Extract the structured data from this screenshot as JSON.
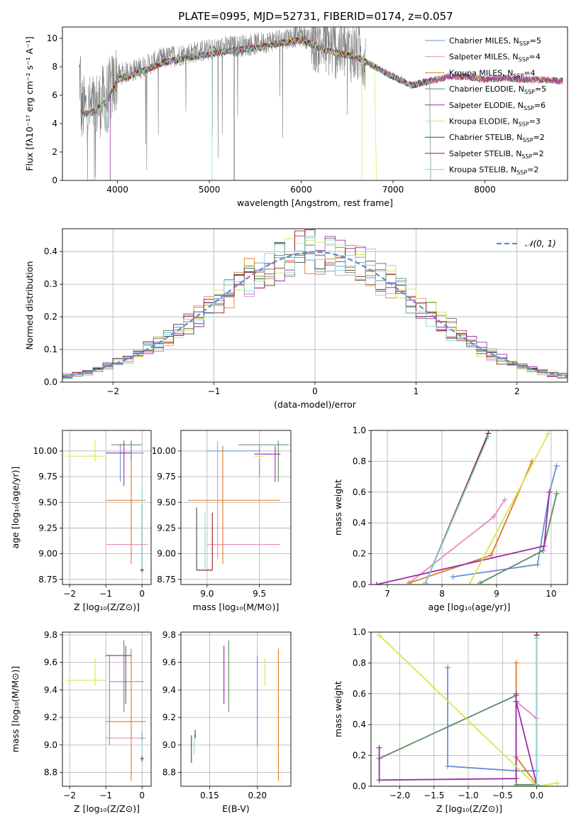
{
  "figure_title": "PLATE=0995, MJD=52731, FIBERID=0174, z=0.057",
  "colors": {
    "Chabrier MILES": "#6b8fd6",
    "Salpeter MILES": "#e58bc0",
    "Kroupa MILES": "#e07b24",
    "Chabrier ELODIE": "#5e8a5e",
    "Salpeter ELODIE": "#9c2fa8",
    "Kroupa ELODIE": "#d6e84a",
    "Chabrier STELIB": "#444444",
    "Salpeter STELIB": "#9e1b1b",
    "Kroupa STELIB": "#86dad9",
    "data": "#808080",
    "gaussian": "#5b8bd8"
  },
  "chart_data": [
    {
      "id": "spectrum",
      "type": "line",
      "title": "",
      "xlabel": "wavelength [Angstrom, rest frame]",
      "ylabel": "Flux [fλ10⁻¹⁷ erg cm⁻² s⁻¹ A⁻¹]",
      "xlim": [
        3400,
        8900
      ],
      "ylim": [
        0,
        10.8
      ],
      "xticks": [
        4000,
        5000,
        6000,
        7000,
        8000
      ],
      "yticks": [
        0,
        2,
        4,
        6,
        8,
        10
      ],
      "grid": false,
      "legend": "top-right",
      "continuum": {
        "x": [
          3600,
          3700,
          3800,
          3900,
          4000,
          4200,
          4500,
          4800,
          5000,
          5200,
          5500,
          5800,
          6000,
          6300,
          6600,
          6800,
          7000,
          7200,
          7400,
          7600,
          7800,
          8000,
          8200,
          8400,
          8600,
          8800
        ],
        "y": [
          5.0,
          5.0,
          5.4,
          6.0,
          7.4,
          7.8,
          8.6,
          9.0,
          9.2,
          9.4,
          9.6,
          10.0,
          10.2,
          9.4,
          9.0,
          8.3,
          7.6,
          7.0,
          7.3,
          7.6,
          7.6,
          7.4,
          7.5,
          7.4,
          7.4,
          7.3
        ]
      },
      "series": [
        {
          "name": "Chabrier MILES",
          "nssp": "5"
        },
        {
          "name": "Salpeter MILES",
          "nssp": "4"
        },
        {
          "name": "Kroupa MILES",
          "nssp": "4"
        },
        {
          "name": "Chabrier ELODIE",
          "nssp": "5"
        },
        {
          "name": "Salpeter ELODIE",
          "nssp": "6"
        },
        {
          "name": "Kroupa ELODIE",
          "nssp": "3"
        },
        {
          "name": "Chabrier STELIB",
          "nssp": "2"
        },
        {
          "name": "Salpeter STELIB",
          "nssp": "2"
        },
        {
          "name": "Kroupa STELIB",
          "nssp": "2"
        }
      ]
    },
    {
      "id": "residuals",
      "type": "histogram",
      "xlabel": "(data-model)/error",
      "ylabel": "Normed distribution",
      "xlim": [
        -2.5,
        2.5
      ],
      "ylim": [
        0,
        0.47
      ],
      "xticks": [
        -2,
        -1,
        0,
        1,
        2
      ],
      "yticks": [
        0.0,
        0.1,
        0.2,
        0.3,
        0.4
      ],
      "grid": true,
      "legend": "top-right",
      "legend_label": "𝒩(0, 1)",
      "bin_width": 0.1,
      "gaussian": {
        "mean": 0,
        "sigma": 1
      }
    },
    {
      "id": "age-vs-z",
      "type": "errorbar",
      "xlabel": "Z [log₁₀(Z/Z⊙)]",
      "ylabel": "age  [log₁₀(age/yr)]",
      "xlim": [
        -2.2,
        0.25
      ],
      "ylim": [
        8.7,
        10.2
      ],
      "xticks": [
        -2,
        -1,
        0
      ],
      "yticks": [
        8.75,
        9.0,
        9.25,
        9.5,
        9.75,
        10.0
      ],
      "points": [
        {
          "s": "Chabrier MILES",
          "x": -0.6,
          "xe": [
            -0.6,
            0.05
          ],
          "y": 9.98,
          "ye": [
            9.7,
            10.07
          ]
        },
        {
          "s": "Salpeter MILES",
          "x": -0.4,
          "xe": [
            -1.0,
            0.15
          ],
          "y": 9.09,
          "ye": [
            9.09,
            9.09
          ]
        },
        {
          "s": "Kroupa MILES",
          "x": -0.3,
          "xe": [
            -1.0,
            0.1
          ],
          "y": 9.52,
          "ye": [
            8.9,
            9.95
          ]
        },
        {
          "s": "Chabrier ELODIE",
          "x": -0.3,
          "xe": [
            -0.85,
            0.0
          ],
          "y": 10.06,
          "ye": [
            9.9,
            10.1
          ]
        },
        {
          "s": "Salpeter ELODIE",
          "x": -0.5,
          "xe": [
            -1.0,
            -0.3
          ],
          "y": 9.98,
          "ye": [
            9.66,
            10.1
          ]
        },
        {
          "s": "Kroupa ELODIE",
          "x": -1.3,
          "xe": [
            -2.1,
            -1.0
          ],
          "y": 9.95,
          "ye": [
            9.9,
            10.1
          ]
        },
        {
          "s": "Chabrier STELIB",
          "x": 0.0,
          "xe": [
            -0.05,
            0.05
          ],
          "y": 8.84,
          "ye": [
            8.82,
            8.86
          ]
        },
        {
          "s": "Salpeter STELIB",
          "x": 0.0,
          "xe": [
            -0.02,
            0.02
          ],
          "y": 8.85,
          "ye": [
            8.85,
            9.48
          ]
        },
        {
          "s": "Kroupa STELIB",
          "x": 0.0,
          "xe": [
            -0.02,
            0.02
          ],
          "y": 9.25,
          "ye": [
            8.85,
            9.65
          ]
        }
      ]
    },
    {
      "id": "age-vs-mass",
      "type": "errorbar",
      "xlabel": "mass [log₁₀(M/M⊙)]",
      "ylabel": "",
      "xlim": [
        8.75,
        9.8
      ],
      "ylim": [
        8.7,
        10.2
      ],
      "xticks": [
        9.0,
        9.5
      ],
      "yticks": [
        8.75,
        9.0,
        9.25,
        9.5,
        9.75,
        10.0
      ],
      "points": [
        {
          "s": "Chabrier MILES",
          "x": 9.5,
          "xe": [
            9.0,
            9.5
          ],
          "y": 10.0,
          "ye": [
            9.75,
            10.05
          ]
        },
        {
          "s": "Salpeter MILES",
          "x": 9.1,
          "xe": [
            9.0,
            9.7
          ],
          "y": 9.09,
          "ye": [
            8.95,
            10.1
          ]
        },
        {
          "s": "Kroupa MILES",
          "x": 9.15,
          "xe": [
            8.82,
            9.7
          ],
          "y": 9.52,
          "ye": [
            8.9,
            10.05
          ]
        },
        {
          "s": "Chabrier ELODIE",
          "x": 9.68,
          "xe": [
            9.3,
            9.78
          ],
          "y": 10.06,
          "ye": [
            9.7,
            10.1
          ]
        },
        {
          "s": "Salpeter ELODIE",
          "x": 9.65,
          "xe": [
            9.45,
            9.7
          ],
          "y": 9.97,
          "ye": [
            9.7,
            10.05
          ]
        },
        {
          "s": "Kroupa ELODIE",
          "x": 9.5,
          "xe": [
            9.45,
            9.55
          ],
          "y": 9.95,
          "ye": [
            9.93,
            9.97
          ]
        },
        {
          "s": "Chabrier STELIB",
          "x": 8.9,
          "xe": [
            8.9,
            9.05
          ],
          "y": 8.84,
          "ye": [
            8.84,
            9.45
          ]
        },
        {
          "s": "Salpeter STELIB",
          "x": 9.05,
          "xe": [
            8.9,
            9.05
          ],
          "y": 8.84,
          "ye": [
            8.84,
            9.4
          ]
        },
        {
          "s": "Kroupa STELIB",
          "x": 8.98,
          "xe": [
            8.97,
            8.99
          ],
          "y": 9.0,
          "ye": [
            8.84,
            9.4
          ]
        }
      ]
    },
    {
      "id": "weight-vs-age",
      "type": "line",
      "xlabel": "age  [log₁₀(age/yr)]",
      "ylabel": "mass weight",
      "xlim": [
        6.7,
        10.3
      ],
      "ylim": [
        0,
        1.0
      ],
      "xticks": [
        7,
        8,
        9,
        10
      ],
      "yticks": [
        0.0,
        0.2,
        0.4,
        0.6,
        0.8,
        1.0
      ],
      "grid": true,
      "series": [
        {
          "name": "Chabrier MILES",
          "x": [
            8.2,
            9.75,
            9.97,
            10.1
          ],
          "y": [
            0.05,
            0.13,
            0.6,
            0.77
          ]
        },
        {
          "name": "Salpeter MILES",
          "x": [
            7.4,
            8.95,
            9.15
          ],
          "y": [
            0.01,
            0.44,
            0.55
          ]
        },
        {
          "name": "Kroupa MILES",
          "x": [
            7.4,
            8.9,
            9.65
          ],
          "y": [
            0.01,
            0.19,
            0.8
          ]
        },
        {
          "name": "Chabrier ELODIE",
          "x": [
            8.7,
            9.85,
            10.1
          ],
          "y": [
            0.01,
            0.22,
            0.59
          ]
        },
        {
          "name": "Salpeter ELODIE",
          "x": [
            6.8,
            9.87,
            9.97
          ],
          "y": [
            0.0,
            0.25,
            0.6
          ]
        },
        {
          "name": "Kroupa ELODIE",
          "x": [
            8.5,
            9.95
          ],
          "y": [
            0.0,
            0.98
          ]
        },
        {
          "name": "Chabrier STELIB",
          "x": [
            7.7,
            8.85
          ],
          "y": [
            0.01,
            0.98
          ]
        },
        {
          "name": "Salpeter STELIB",
          "x": [
            7.7,
            8.85
          ],
          "y": [
            0.01,
            0.98
          ]
        },
        {
          "name": "Kroupa STELIB",
          "x": [
            7.7,
            8.85
          ],
          "y": [
            0.01,
            0.96
          ]
        }
      ]
    },
    {
      "id": "mass-vs-z",
      "type": "errorbar",
      "xlabel": "Z [log₁₀(Z/Z⊙)]",
      "ylabel": "mass [log₁₀(M/M⊙)]",
      "xlim": [
        -2.2,
        0.25
      ],
      "ylim": [
        8.7,
        9.82
      ],
      "xticks": [
        -2,
        -1,
        0
      ],
      "yticks": [
        8.8,
        9.0,
        9.2,
        9.4,
        9.6,
        9.8
      ],
      "points": [
        {
          "s": "Chabrier MILES",
          "x": -0.9,
          "xe": [
            -0.9,
            0.05
          ],
          "y": 9.46,
          "ye": [
            9.0,
            9.65
          ]
        },
        {
          "s": "Salpeter MILES",
          "x": -0.5,
          "xe": [
            -1.0,
            0.1
          ],
          "y": 9.05,
          "ye": [
            9.05,
            9.05
          ]
        },
        {
          "s": "Kroupa MILES",
          "x": -0.3,
          "xe": [
            -1.0,
            0.1
          ],
          "y": 9.17,
          "ye": [
            8.74,
            9.7
          ]
        },
        {
          "s": "Chabrier ELODIE",
          "x": -0.5,
          "xe": [
            -1.0,
            -0.35
          ],
          "y": 9.65,
          "ye": [
            9.24,
            9.76
          ]
        },
        {
          "s": "Salpeter ELODIE",
          "x": -0.45,
          "xe": [
            -1.0,
            -0.3
          ],
          "y": 9.65,
          "ye": [
            9.3,
            9.72
          ]
        },
        {
          "s": "Kroupa ELODIE",
          "x": -1.3,
          "xe": [
            -2.1,
            -1.0
          ],
          "y": 9.47,
          "ye": [
            9.43,
            9.63
          ]
        },
        {
          "s": "Chabrier STELIB",
          "x": 0.0,
          "xe": [
            -0.05,
            0.05
          ],
          "y": 8.9,
          "ye": [
            8.88,
            8.92
          ]
        },
        {
          "s": "Salpeter STELIB",
          "x": 0.0,
          "xe": [
            -0.02,
            0.02
          ],
          "y": 9.05,
          "ye": [
            9.03,
            9.1
          ]
        },
        {
          "s": "Kroupa STELIB",
          "x": 0.0,
          "xe": [
            -0.02,
            0.02
          ],
          "y": 8.95,
          "ye": [
            8.93,
            9.1
          ]
        }
      ]
    },
    {
      "id": "mass-vs-ebv",
      "type": "errorbar",
      "xlabel": "E(B-V)",
      "ylabel": "",
      "xlim": [
        0.12,
        0.235
      ],
      "ylim": [
        8.7,
        9.82
      ],
      "xticks": [
        0.15,
        0.2
      ],
      "yticks": [
        8.8,
        9.0,
        9.2,
        9.4,
        9.6,
        9.8
      ],
      "points": [
        {
          "s": "Chabrier MILES",
          "x": 0.2,
          "xe": [
            0.2,
            0.2
          ],
          "y": 9.3,
          "ye": [
            8.99,
            9.65
          ]
        },
        {
          "s": "Salpeter MILES",
          "x": 0.165,
          "xe": [
            0.165,
            0.165
          ],
          "y": 9.5,
          "ye": [
            9.3,
            9.72
          ]
        },
        {
          "s": "Kroupa MILES",
          "x": 0.222,
          "xe": [
            0.222,
            0.222
          ],
          "y": 9.2,
          "ye": [
            8.74,
            9.7
          ]
        },
        {
          "s": "Chabrier ELODIE",
          "x": 0.17,
          "xe": [
            0.17,
            0.17
          ],
          "y": 9.5,
          "ye": [
            9.24,
            9.76
          ]
        },
        {
          "s": "Salpeter ELODIE",
          "x": 0.165,
          "xe": [
            0.165,
            0.165
          ],
          "y": 9.5,
          "ye": [
            9.3,
            9.72
          ]
        },
        {
          "s": "Kroupa ELODIE",
          "x": 0.208,
          "xe": [
            0.208,
            0.208
          ],
          "y": 9.53,
          "ye": [
            9.43,
            9.63
          ]
        },
        {
          "s": "Chabrier STELIB",
          "x": 0.131,
          "xe": [
            0.131,
            0.131
          ],
          "y": 8.96,
          "ye": [
            8.87,
            9.07
          ]
        },
        {
          "s": "Salpeter STELIB",
          "x": 0.135,
          "xe": [
            0.135,
            0.135
          ],
          "y": 9.07,
          "ye": [
            9.05,
            9.11
          ]
        },
        {
          "s": "Kroupa STELIB",
          "x": 0.134,
          "xe": [
            0.134,
            0.134
          ],
          "y": 9.0,
          "ye": [
            8.93,
            9.08
          ]
        }
      ]
    },
    {
      "id": "weight-vs-z",
      "type": "line",
      "xlabel": "Z [log₁₀(Z/Z⊙)]",
      "ylabel": "mass weight",
      "xlim": [
        -2.42,
        0.45
      ],
      "ylim": [
        0,
        1.0
      ],
      "xticks": [
        -2.0,
        -1.5,
        -1.0,
        -0.5,
        0.0
      ],
      "yticks": [
        0.0,
        0.2,
        0.4,
        0.6,
        0.8,
        1.0
      ],
      "grid": true,
      "series": [
        {
          "name": "Chabrier MILES",
          "x": [
            -1.3,
            -1.3,
            -0.3,
            0.0
          ],
          "y": [
            0.77,
            0.13,
            0.1,
            0.1
          ]
        },
        {
          "name": "Salpeter MILES",
          "x": [
            -0.3,
            0.0
          ],
          "y": [
            0.55,
            0.44
          ]
        },
        {
          "name": "Kroupa MILES",
          "x": [
            -0.3,
            -0.3,
            0.0
          ],
          "y": [
            0.8,
            0.19,
            0.01
          ]
        },
        {
          "name": "Chabrier ELODIE",
          "x": [
            -2.3,
            -0.3,
            -0.3,
            0.0
          ],
          "y": [
            0.18,
            0.59,
            0.01,
            0.01
          ]
        },
        {
          "name": "Salpeter ELODIE",
          "x": [
            -2.3,
            -2.3,
            -0.3,
            -0.3,
            -0.3,
            0.0
          ],
          "y": [
            0.25,
            0.04,
            0.05,
            0.6,
            0.55,
            0.01
          ]
        },
        {
          "name": "Kroupa ELODIE",
          "x": [
            -2.3,
            0.0,
            0.3
          ],
          "y": [
            0.98,
            0.0,
            0.02
          ]
        },
        {
          "name": "Chabrier STELIB",
          "x": [
            0.0,
            0.0
          ],
          "y": [
            0.01,
            0.98
          ]
        },
        {
          "name": "Salpeter STELIB",
          "x": [
            0.0,
            0.0
          ],
          "y": [
            0.01,
            0.98
          ]
        },
        {
          "name": "Kroupa STELIB",
          "x": [
            0.0,
            0.0
          ],
          "y": [
            0.01,
            0.96
          ]
        }
      ]
    }
  ]
}
